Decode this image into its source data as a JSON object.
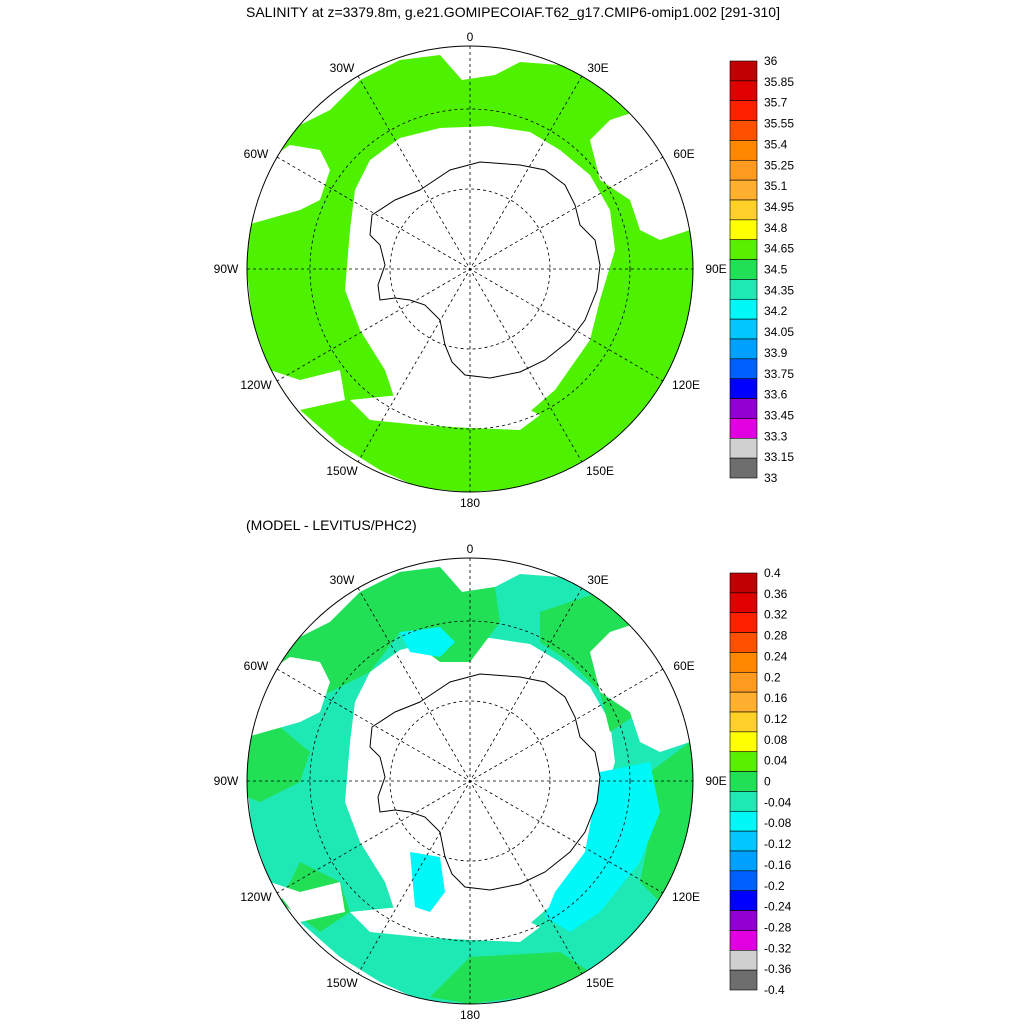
{
  "titles": {
    "top": "SALINITY at z=3379.8m, g.e21.GOMIPECOIAF.T62_g17.CMIP6-omip1.002 [291-310]",
    "bottom": "(MODEL - LEVITUS/PHC2)"
  },
  "map_labels": {
    "lon_0": "0",
    "lon_30e": "30E",
    "lon_60e": "60E",
    "lon_90e": "90E",
    "lon_120e": "120E",
    "lon_150e": "150E",
    "lon_180": "180",
    "lon_150w": "150W",
    "lon_120w": "120W",
    "lon_90w": "90W",
    "lon_60w": "60W",
    "lon_30w": "30W"
  },
  "colors": {
    "land": "#ffffff",
    "ocean_top": "#4ef200",
    "ocean_bottom_pos": "#22e056",
    "ocean_bottom_zero": "#1ee8b4",
    "ocean_bottom_neg": "#00f8f8"
  },
  "chart_data": [
    {
      "type": "heatmap",
      "title": "SALINITY at z=3379.8m, g.e21.GOMIPECOIAF.T62_g17.CMIP6-omip1.002 [291-310]",
      "projection": "south polar stereographic",
      "colorbar_labels": [
        "36",
        "35.85",
        "35.7",
        "35.55",
        "35.4",
        "35.25",
        "35.1",
        "34.95",
        "34.8",
        "34.65",
        "34.5",
        "34.35",
        "34.2",
        "34.05",
        "33.9",
        "33.75",
        "33.6",
        "33.45",
        "33.3",
        "33.15",
        "33"
      ],
      "colorbar_colors": [
        "#c00000",
        "#e00000",
        "#ff2000",
        "#ff5000",
        "#ff8800",
        "#ff9a20",
        "#ffb030",
        "#ffd028",
        "#ffff00",
        "#58f000",
        "#22e056",
        "#1ee8b4",
        "#00f8f8",
        "#00c8ff",
        "#00a0ff",
        "#0060ff",
        "#0000ff",
        "#9000d0",
        "#e000e0",
        "#d0d0d0",
        "#6e6e6e"
      ]
    },
    {
      "type": "heatmap",
      "title": "(MODEL - LEVITUS/PHC2)",
      "projection": "south polar stereographic",
      "colorbar_labels": [
        "0.4",
        "0.36",
        "0.32",
        "0.28",
        "0.24",
        "0.2",
        "0.16",
        "0.12",
        "0.08",
        "0.04",
        "0",
        "-0.04",
        "-0.08",
        "-0.12",
        "-0.16",
        "-0.2",
        "-0.24",
        "-0.28",
        "-0.32",
        "-0.36",
        "-0.4"
      ],
      "colorbar_colors": [
        "#c00000",
        "#e00000",
        "#ff2000",
        "#ff5000",
        "#ff8800",
        "#ff9a20",
        "#ffb030",
        "#ffd028",
        "#ffff00",
        "#58f000",
        "#22e056",
        "#1ee8b4",
        "#00f8f8",
        "#00c8ff",
        "#00a0ff",
        "#0060ff",
        "#0000ff",
        "#9000d0",
        "#e000e0",
        "#d0d0d0",
        "#6e6e6e"
      ]
    }
  ]
}
